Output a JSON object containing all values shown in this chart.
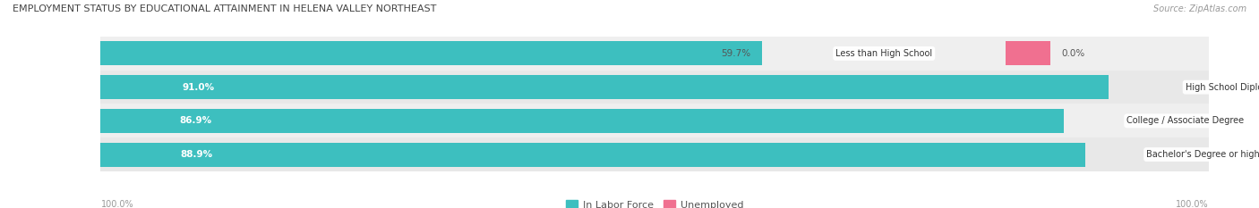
{
  "title": "EMPLOYMENT STATUS BY EDUCATIONAL ATTAINMENT IN HELENA VALLEY NORTHEAST",
  "source": "Source: ZipAtlas.com",
  "categories": [
    "Less than High School",
    "High School Diploma",
    "College / Associate Degree",
    "Bachelor's Degree or higher"
  ],
  "in_labor_force": [
    59.7,
    91.0,
    86.9,
    88.9
  ],
  "unemployed": [
    0.0,
    0.0,
    0.0,
    0.7
  ],
  "labor_force_color": "#3DBFBF",
  "unemployed_color": "#F07090",
  "row_bg_colors": [
    "#EFEFEF",
    "#E8E8E8",
    "#EFEFEF",
    "#E8E8E8"
  ],
  "label_color": "#555555",
  "title_color": "#444444",
  "legend_label_in_labor": "In Labor Force",
  "legend_label_unemployed": "Unemployed",
  "left_axis_label": "100.0%",
  "right_axis_label": "100.0%",
  "figwidth": 14.06,
  "figheight": 2.33,
  "dpi": 100
}
